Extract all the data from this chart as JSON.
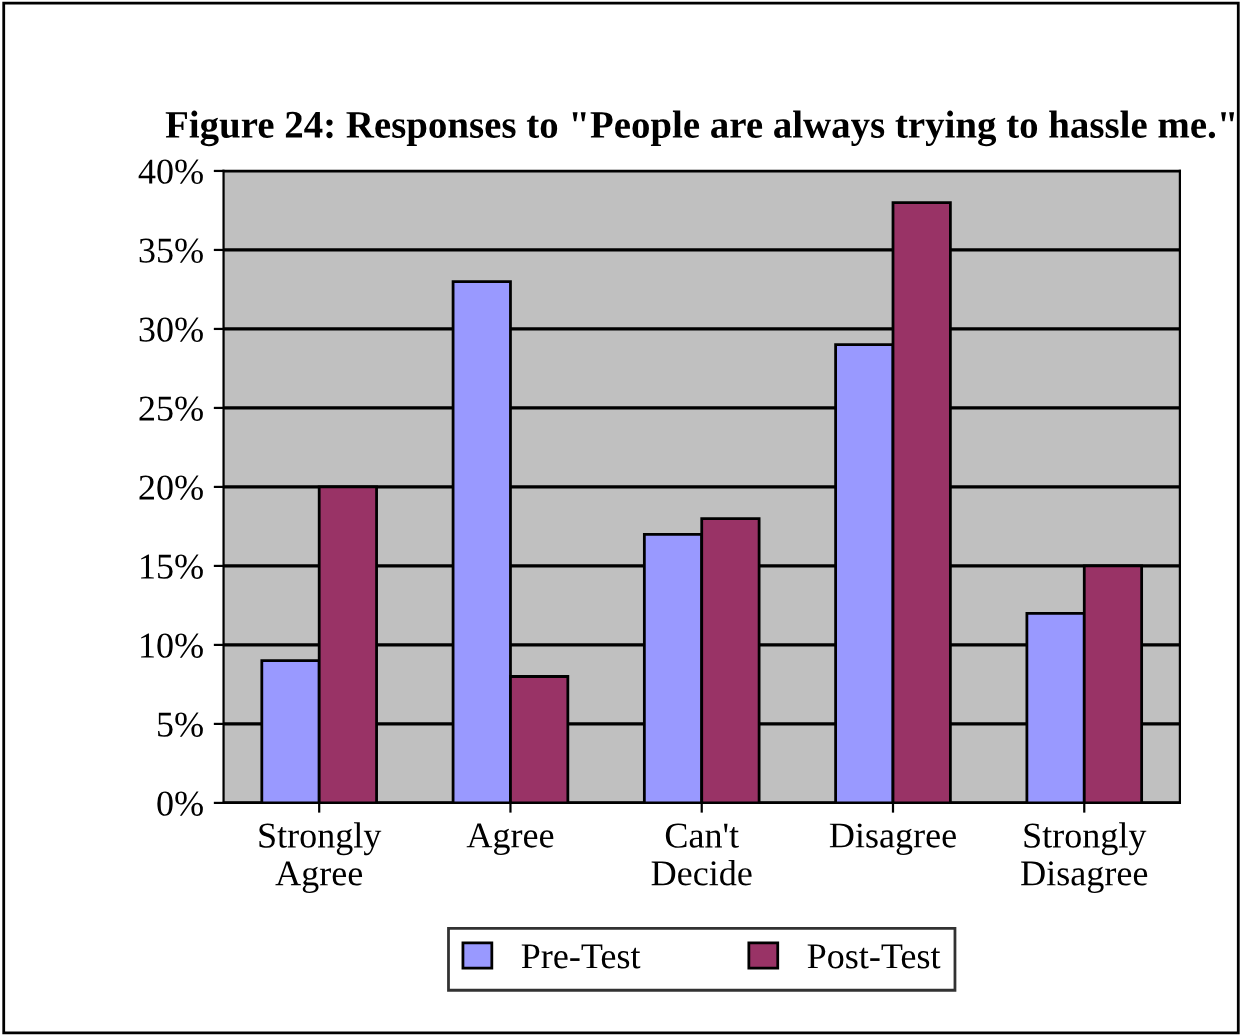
{
  "chart_data": {
    "type": "bar",
    "title": "Figure 24: Responses to \"People are always trying to hassle me.\"",
    "categories": [
      "Strongly Agree",
      "Agree",
      "Can't Decide",
      "Disagree",
      "Strongly Disagree"
    ],
    "series": [
      {
        "name": "Pre-Test",
        "color": "#9999ff",
        "values": [
          9,
          33,
          17,
          29,
          12
        ]
      },
      {
        "name": "Post-Test",
        "color": "#993366",
        "values": [
          20,
          8,
          18,
          38,
          15
        ]
      }
    ],
    "ylim": [
      0,
      40
    ],
    "yticks": [
      {
        "value": 0,
        "label": "0%"
      },
      {
        "value": 5,
        "label": "5%"
      },
      {
        "value": 10,
        "label": "10%"
      },
      {
        "value": 15,
        "label": "15%"
      },
      {
        "value": 20,
        "label": "20%"
      },
      {
        "value": 25,
        "label": "25%"
      },
      {
        "value": 30,
        "label": "30%"
      },
      {
        "value": 35,
        "label": "35%"
      },
      {
        "value": 40,
        "label": "40%"
      }
    ],
    "grid": "y",
    "legend": "bottom"
  }
}
